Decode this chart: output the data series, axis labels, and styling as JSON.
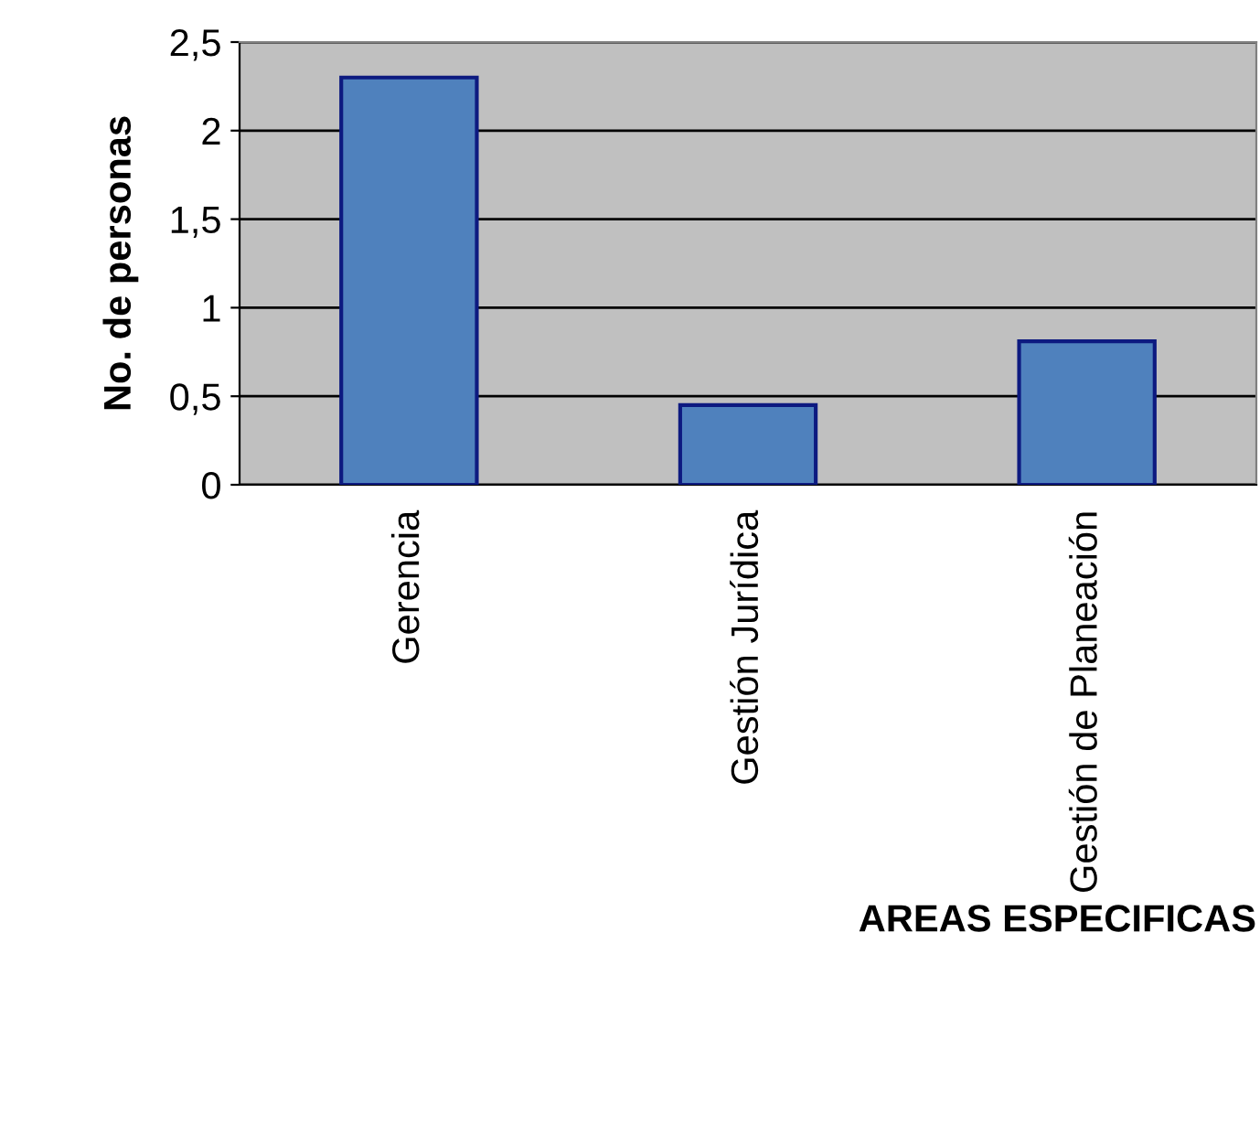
{
  "chart_data": {
    "type": "bar",
    "xlabel": "AREAS ESPECIFICAS",
    "ylabel": "No. de personas",
    "categories": [
      "Gerencia",
      "Gestión Jurídica",
      "Gestión de Planeación"
    ],
    "values": [
      2.3,
      0.45,
      0.81
    ],
    "color": "#4f81bd",
    "ylim": [
      0,
      2.5
    ],
    "yticks": [
      0,
      {
        "value": 0.5,
        "label": "0,5"
      },
      1,
      {
        "value": 1.5,
        "label": "1,5"
      },
      2,
      {
        "value": 2.5,
        "label": "2,5"
      }
    ],
    "grid": "y",
    "legend": false
  }
}
